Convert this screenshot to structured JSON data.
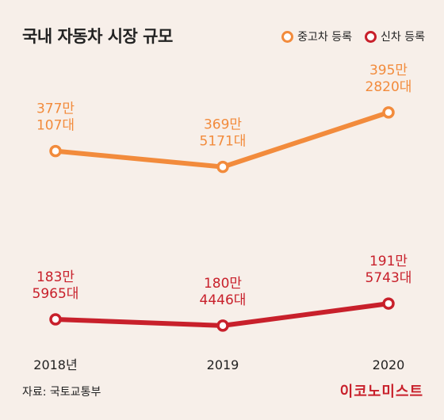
{
  "title": "국내 자동차 시장 규모",
  "source": "자료: 국토교통부",
  "brand": "이코노미스트",
  "colors": {
    "used": "#f28b3c",
    "new": "#c8202b"
  },
  "chart_data": {
    "type": "line",
    "categories": [
      "2018년",
      "2019",
      "2020"
    ],
    "series": [
      {
        "name": "중고차 등록",
        "values": [
          3770107,
          3695171,
          3952820
        ],
        "labels": [
          [
            "377만",
            "107대"
          ],
          [
            "369만",
            "5171대"
          ],
          [
            "395만",
            "2820대"
          ]
        ],
        "color": "#f28b3c"
      },
      {
        "name": "신차 등록",
        "values": [
          1835965,
          1804446,
          1915743
        ],
        "labels": [
          [
            "183만",
            "5965대"
          ],
          [
            "180만",
            "4446대"
          ],
          [
            "191만",
            "5743대"
          ]
        ],
        "color": "#c8202b"
      }
    ]
  }
}
